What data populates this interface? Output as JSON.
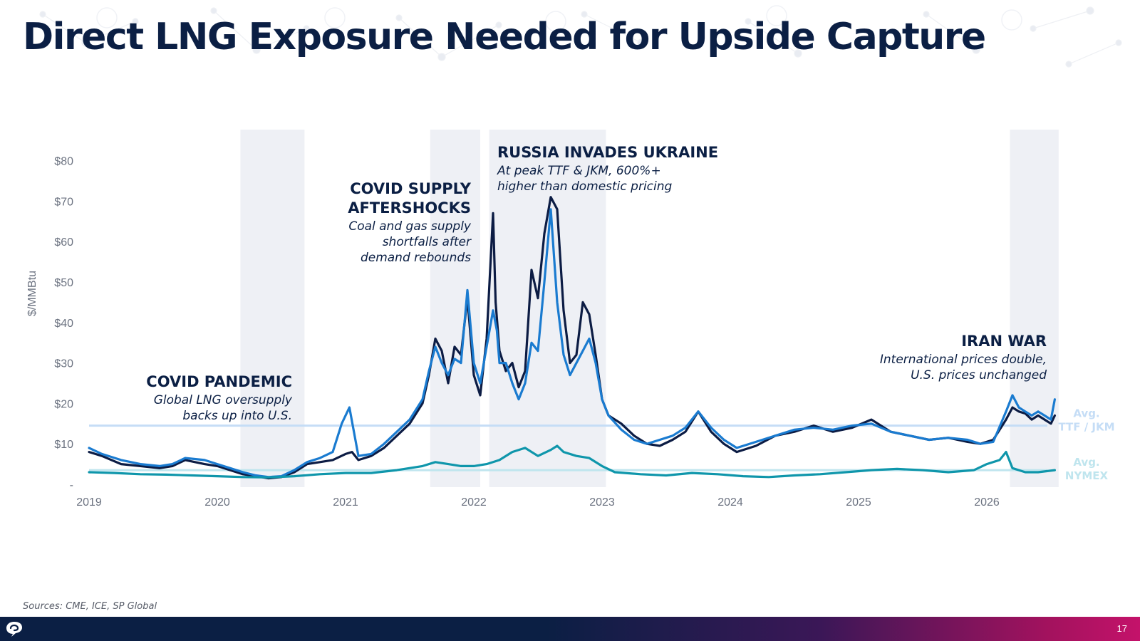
{
  "slide": {
    "title": "Direct LNG Exposure Needed for Upside Capture",
    "source": "Sources: CME, ICE, SP Global",
    "page_number": "17"
  },
  "colors": {
    "navy": "#0b1f44",
    "intl_dark": "#0c1c44",
    "intl_blue": "#1a7bd0",
    "nymex_teal": "#0f96ab",
    "avg_intl": "#c5ddf6",
    "avg_nymex": "#bfe5ee",
    "shade": "#eef0f5"
  },
  "chart_data": {
    "type": "line",
    "ylabel": "$/MMBtu",
    "ylim": [
      0,
      80
    ],
    "y_ticks": [
      {
        "value": 0,
        "label": "-"
      },
      {
        "value": 10,
        "label": "$10"
      },
      {
        "value": 20,
        "label": "$20"
      },
      {
        "value": 30,
        "label": "$30"
      },
      {
        "value": 40,
        "label": "$40"
      },
      {
        "value": 50,
        "label": "$50"
      },
      {
        "value": 60,
        "label": "$60"
      },
      {
        "value": 70,
        "label": "$70"
      },
      {
        "value": 80,
        "label": "$80"
      }
    ],
    "xlim": [
      2019.0,
      2026.75
    ],
    "x_ticks": [
      {
        "value": 2019,
        "label": "2019"
      },
      {
        "value": 2020,
        "label": "2020"
      },
      {
        "value": 2021,
        "label": "2021"
      },
      {
        "value": 2022,
        "label": "2022"
      },
      {
        "value": 2023,
        "label": "2023"
      },
      {
        "value": 2024,
        "label": "2024"
      },
      {
        "value": 2025,
        "label": "2025"
      },
      {
        "value": 2026,
        "label": "2026"
      }
    ],
    "shaded_periods": [
      [
        2020.18,
        2020.68
      ],
      [
        2021.66,
        2022.05
      ],
      [
        2022.12,
        2023.03
      ],
      [
        2026.18,
        2026.56
      ]
    ],
    "averages": [
      {
        "label_line1": "Avg.",
        "label_line2": "TTF / JKM",
        "value": 14.5,
        "color": "#c5ddf6"
      },
      {
        "label_line1": "Avg.",
        "label_line2": "NYMEX",
        "value": 3.5,
        "color": "#bfe5ee"
      }
    ],
    "series": [
      {
        "color": "#0c1c44",
        "x": [
          2019.0,
          2019.1,
          2019.25,
          2019.4,
          2019.55,
          2019.65,
          2019.75,
          2019.9,
          2020.0,
          2020.1,
          2020.2,
          2020.3,
          2020.4,
          2020.5,
          2020.6,
          2020.7,
          2020.8,
          2020.9,
          2021.0,
          2021.05,
          2021.1,
          2021.2,
          2021.3,
          2021.4,
          2021.5,
          2021.6,
          2021.65,
          2021.7,
          2021.75,
          2021.8,
          2021.85,
          2021.9,
          2021.95,
          2022.0,
          2022.05,
          2022.1,
          2022.15,
          2022.17,
          2022.2,
          2022.25,
          2022.3,
          2022.35,
          2022.4,
          2022.45,
          2022.5,
          2022.55,
          2022.6,
          2022.65,
          2022.7,
          2022.75,
          2022.8,
          2022.85,
          2022.9,
          2022.95,
          2023.0,
          2023.05,
          2023.15,
          2023.25,
          2023.35,
          2023.45,
          2023.55,
          2023.65,
          2023.75,
          2023.85,
          2023.95,
          2024.05,
          2024.2,
          2024.35,
          2024.5,
          2024.65,
          2024.8,
          2024.95,
          2025.1,
          2025.25,
          2025.4,
          2025.55,
          2025.7,
          2025.85,
          2025.95,
          2026.05,
          2026.15,
          2026.2,
          2026.25,
          2026.3,
          2026.35,
          2026.4,
          2026.45,
          2026.5,
          2026.53
        ],
        "y": [
          8,
          7,
          5,
          4.5,
          4,
          4.5,
          6,
          5,
          4.5,
          3.5,
          2.5,
          2,
          1.5,
          1.8,
          3,
          5,
          5.5,
          6,
          7.5,
          8,
          6,
          7,
          9,
          12,
          15,
          20,
          27,
          36,
          33,
          25,
          34,
          32,
          46,
          27,
          22,
          36,
          67,
          45,
          33,
          28,
          30,
          24,
          28,
          53,
          46,
          62,
          71,
          68,
          43,
          30,
          32,
          45,
          42,
          32,
          21,
          17,
          15,
          12,
          10,
          9.5,
          11,
          13,
          18,
          13,
          10,
          8,
          9.5,
          12,
          13,
          14.5,
          13,
          14,
          16,
          13,
          12,
          11,
          11.5,
          10.5,
          10,
          11,
          16,
          19,
          18,
          17.5,
          16,
          17,
          16,
          15,
          17
        ]
      },
      {
        "color": "#1a7bd0",
        "x": [
          2019.0,
          2019.1,
          2019.25,
          2019.4,
          2019.55,
          2019.65,
          2019.75,
          2019.9,
          2020.0,
          2020.1,
          2020.2,
          2020.3,
          2020.4,
          2020.5,
          2020.6,
          2020.7,
          2020.8,
          2020.9,
          2020.97,
          2021.03,
          2021.1,
          2021.2,
          2021.3,
          2021.4,
          2021.5,
          2021.6,
          2021.65,
          2021.7,
          2021.75,
          2021.8,
          2021.85,
          2021.9,
          2021.95,
          2022.0,
          2022.05,
          2022.1,
          2022.15,
          2022.18,
          2022.2,
          2022.25,
          2022.3,
          2022.35,
          2022.4,
          2022.45,
          2022.5,
          2022.55,
          2022.6,
          2022.65,
          2022.7,
          2022.75,
          2022.8,
          2022.85,
          2022.9,
          2022.95,
          2023.0,
          2023.05,
          2023.15,
          2023.25,
          2023.35,
          2023.45,
          2023.55,
          2023.65,
          2023.75,
          2023.85,
          2023.95,
          2024.05,
          2024.2,
          2024.35,
          2024.5,
          2024.65,
          2024.8,
          2024.95,
          2025.1,
          2025.25,
          2025.4,
          2025.55,
          2025.7,
          2025.85,
          2025.95,
          2026.05,
          2026.15,
          2026.2,
          2026.25,
          2026.3,
          2026.35,
          2026.4,
          2026.45,
          2026.5,
          2026.53
        ],
        "y": [
          9,
          7.5,
          6,
          5,
          4.5,
          5,
          6.5,
          6,
          5,
          4,
          3,
          2.2,
          1.8,
          2,
          3.5,
          5.5,
          6.5,
          8,
          15,
          19,
          7,
          7.5,
          10,
          13,
          16,
          21,
          28,
          34,
          30,
          27,
          31,
          30,
          48,
          30,
          25,
          34,
          43,
          38,
          30,
          30,
          25,
          21,
          25,
          35,
          33,
          50,
          68,
          45,
          32,
          27,
          30,
          33,
          36,
          30,
          21,
          17,
          13.5,
          11,
          10,
          11,
          12,
          14,
          18,
          14,
          11,
          9,
          10.5,
          12,
          13.5,
          14,
          13.5,
          14.5,
          15,
          13,
          12,
          11,
          11.5,
          11,
          10,
          10.5,
          18,
          22,
          19,
          18,
          17,
          18,
          17,
          16,
          21
        ]
      },
      {
        "color": "#0f96ab",
        "x": [
          2019.0,
          2019.2,
          2019.4,
          2019.6,
          2019.8,
          2020.0,
          2020.2,
          2020.4,
          2020.6,
          2020.8,
          2021.0,
          2021.2,
          2021.4,
          2021.6,
          2021.7,
          2021.8,
          2021.9,
          2022.0,
          2022.1,
          2022.2,
          2022.3,
          2022.4,
          2022.5,
          2022.6,
          2022.65,
          2022.7,
          2022.8,
          2022.9,
          2023.0,
          2023.1,
          2023.3,
          2023.5,
          2023.7,
          2023.9,
          2024.1,
          2024.3,
          2024.5,
          2024.7,
          2024.9,
          2025.1,
          2025.3,
          2025.5,
          2025.7,
          2025.9,
          2026.0,
          2026.1,
          2026.15,
          2026.2,
          2026.3,
          2026.4,
          2026.53
        ],
        "y": [
          3,
          2.8,
          2.5,
          2.4,
          2.2,
          2,
          1.8,
          1.7,
          2,
          2.5,
          2.8,
          2.8,
          3.5,
          4.5,
          5.5,
          5,
          4.5,
          4.5,
          5,
          6,
          8,
          9,
          7,
          8.5,
          9.5,
          8,
          7,
          6.5,
          4.5,
          3,
          2.5,
          2.2,
          2.8,
          2.5,
          2,
          1.8,
          2.2,
          2.5,
          3,
          3.5,
          3.8,
          3.5,
          3,
          3.5,
          5,
          6,
          8,
          4,
          3,
          3,
          3.5
        ]
      }
    ],
    "annotations": [
      {
        "title_lines": [
          "COVID PANDEMIC"
        ],
        "body_lines": [
          "Global LNG oversupply",
          "backs up into U.S."
        ],
        "align": "right"
      },
      {
        "title_lines": [
          "COVID SUPPLY",
          "AFTERSHOCKS"
        ],
        "body_lines": [
          "Coal and gas supply",
          "shortfalls after",
          "demand rebounds"
        ],
        "align": "right"
      },
      {
        "title_lines": [
          "RUSSIA INVADES UKRAINE"
        ],
        "body_lines": [
          "At peak TTF & JKM, 600%+",
          "higher than domestic pricing"
        ],
        "align": "left"
      },
      {
        "title_lines": [
          "IRAN WAR"
        ],
        "body_lines": [
          "International prices double,",
          "U.S. prices unchanged"
        ],
        "align": "right"
      }
    ]
  }
}
